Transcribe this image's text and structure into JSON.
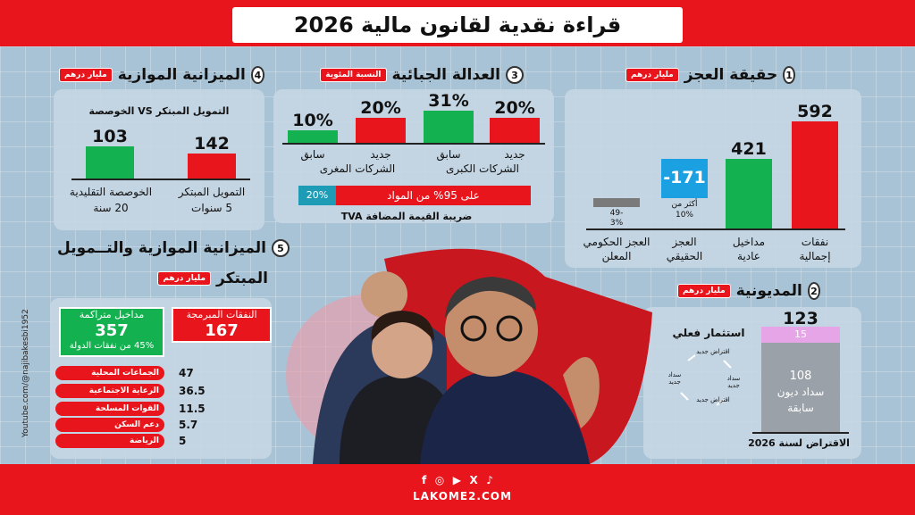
{
  "header": {
    "title": "قراءة نقدية لقانون مالية 2026"
  },
  "footer": {
    "url": "LAKOME2.COM",
    "icons": [
      "facebook-icon",
      "instagram-icon",
      "youtube-icon",
      "x-icon",
      "tiktok-icon"
    ]
  },
  "side_credit": "Youtube.com/@najibakesbi1952",
  "colors": {
    "red": "#e8151c",
    "green": "#13b150",
    "blue": "#1ba0e2",
    "gray": "#7a7a7a",
    "pink": "#e6a5e6",
    "teal": "#1e9cb5"
  },
  "sec1": {
    "number": "1",
    "title": "حقيقة العجز",
    "unit": "مليار درهم",
    "bars": [
      {
        "value": "592",
        "label1": "نفقات",
        "label2": "إجمالية"
      },
      {
        "value": "421",
        "label1": "مداخيل",
        "label2": "عادية"
      },
      {
        "value": "-171",
        "label1": "العجز",
        "label2": "الحقيقي",
        "note1": "أكثر من",
        "note2": "10%"
      },
      {
        "value": "-49",
        "sub": "3%",
        "label1": "العجز الحكومي",
        "label2": "المعلن"
      }
    ]
  },
  "sec2": {
    "number": "2",
    "title": "المديونية",
    "unit": "مليار درهم",
    "total": "123",
    "top_value": "15",
    "bottom_value": "108",
    "bottom_label1": "سداد ديون",
    "bottom_label2": "سابقة",
    "caption": "الاقتراض لسنة 2026",
    "cycle_title": "استثمار فعلي",
    "cycle_items": [
      "اقتراض جديد",
      "سداد جديد",
      "اقتراض جديد",
      "سداد جديد"
    ]
  },
  "sec3": {
    "number": "3",
    "title": "العدالة الجبائية",
    "unit": "النسبة المئوية",
    "bars": [
      {
        "value": "20%",
        "label": "جديد"
      },
      {
        "value": "31%",
        "label": "سابق"
      },
      {
        "value": "20%",
        "label": "جديد"
      },
      {
        "value": "10%",
        "label": "سابق"
      }
    ],
    "group_large": "الشركات الكبرى",
    "group_small": "الشركات المغرى",
    "tva_main": "على 95% من المواد",
    "tva_small": "20%",
    "tva_caption": "ضريبة القيمة المضافة TVA"
  },
  "sec4": {
    "number": "4",
    "title": "الميزانية الموازية",
    "unit": "مليار درهم",
    "subtitle": "التمويل المبتكر VS الخوصصة",
    "bars": [
      {
        "value": "142",
        "label1": "التمويل المبتكر",
        "label2": "5 سنوات"
      },
      {
        "value": "103",
        "label1": "الخوصصة التقليدية",
        "label2": "20 سنة"
      }
    ]
  },
  "sec5": {
    "number": "5",
    "title1": "الميزانية الموازية والتــمويل",
    "title2": "المبتكر",
    "unit": "مليار درهم",
    "programmed_label": "النفقات المبرمجة",
    "programmed_value": "167",
    "accumulated_label": "مداخيل متراكمة",
    "accumulated_value": "357",
    "accumulated_note": "45% من نفقات الدولة",
    "items": [
      {
        "label": "الجماعات المحلية",
        "value": "47"
      },
      {
        "label": "الرعاية الاجتماعية",
        "value": "36.5"
      },
      {
        "label": "القوات المسلحة",
        "value": "11.5"
      },
      {
        "label": "دعم السكن",
        "value": "5.7"
      },
      {
        "label": "الرياضة",
        "value": "5"
      }
    ]
  }
}
